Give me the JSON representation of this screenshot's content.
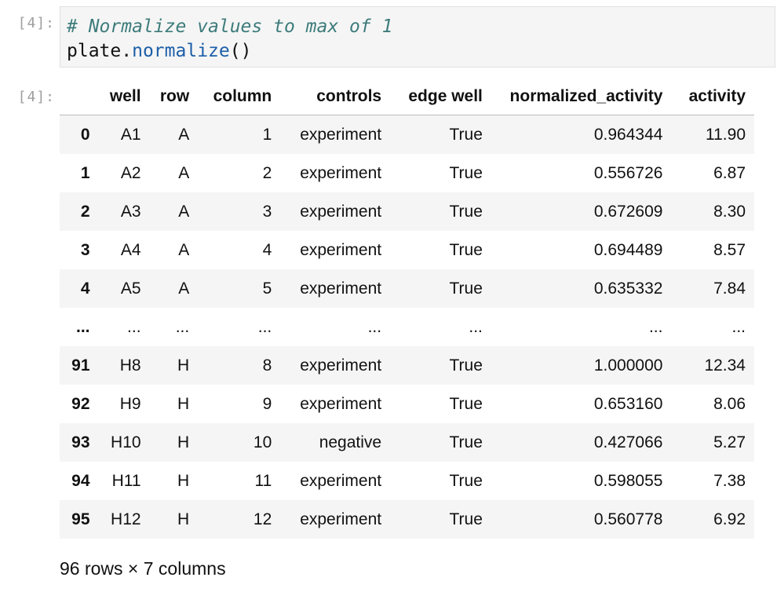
{
  "cell": {
    "input_prompt": "[4]:",
    "output_prompt": "[4]:",
    "code": {
      "comment": "# Normalize values to max of 1",
      "object": "plate",
      "dot": ".",
      "method": "normalize",
      "parens": "()"
    }
  },
  "dataframe": {
    "index_header": "",
    "columns": [
      "well",
      "row",
      "column",
      "controls",
      "edge well",
      "normalized_activity",
      "activity"
    ],
    "rows": [
      {
        "index": "0",
        "cells": [
          "A1",
          "A",
          "1",
          "experiment",
          "True",
          "0.964344",
          "11.90"
        ]
      },
      {
        "index": "1",
        "cells": [
          "A2",
          "A",
          "2",
          "experiment",
          "True",
          "0.556726",
          "6.87"
        ]
      },
      {
        "index": "2",
        "cells": [
          "A3",
          "A",
          "3",
          "experiment",
          "True",
          "0.672609",
          "8.30"
        ]
      },
      {
        "index": "3",
        "cells": [
          "A4",
          "A",
          "4",
          "experiment",
          "True",
          "0.694489",
          "8.57"
        ]
      },
      {
        "index": "4",
        "cells": [
          "A5",
          "A",
          "5",
          "experiment",
          "True",
          "0.635332",
          "7.84"
        ]
      },
      {
        "index": "...",
        "cells": [
          "...",
          "...",
          "...",
          "...",
          "...",
          "...",
          "..."
        ]
      },
      {
        "index": "91",
        "cells": [
          "H8",
          "H",
          "8",
          "experiment",
          "True",
          "1.000000",
          "12.34"
        ]
      },
      {
        "index": "92",
        "cells": [
          "H9",
          "H",
          "9",
          "experiment",
          "True",
          "0.653160",
          "8.06"
        ]
      },
      {
        "index": "93",
        "cells": [
          "H10",
          "H",
          "10",
          "negative",
          "True",
          "0.427066",
          "5.27"
        ]
      },
      {
        "index": "94",
        "cells": [
          "H11",
          "H",
          "11",
          "experiment",
          "True",
          "0.598055",
          "7.38"
        ]
      },
      {
        "index": "95",
        "cells": [
          "H12",
          "H",
          "12",
          "experiment",
          "True",
          "0.560778",
          "6.92"
        ]
      }
    ],
    "shape_text": "96 rows × 7 columns"
  }
}
